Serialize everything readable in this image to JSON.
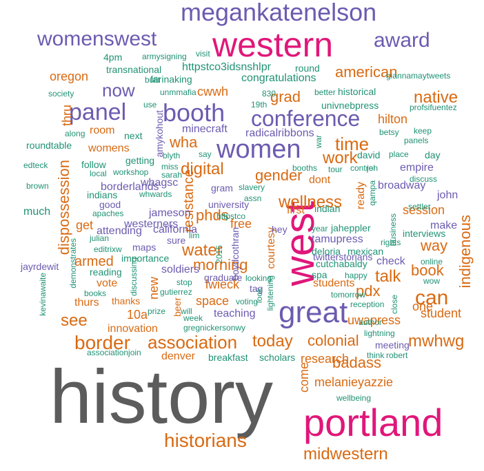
{
  "colors": {
    "gray": "#5c5c5c",
    "magenta": "#e0177a",
    "purple": "#6c5bb0",
    "orange": "#d96a12",
    "green": "#1f9274"
  },
  "words": [
    {
      "text": "history",
      "color": "gray"
    },
    {
      "text": "portland",
      "color": "magenta"
    },
    {
      "text": "western",
      "color": "magenta"
    },
    {
      "text": "west",
      "color": "magenta"
    },
    {
      "text": "great",
      "color": "purple"
    },
    {
      "text": "megankatenelson",
      "color": "purple"
    },
    {
      "text": "booth",
      "color": "purple"
    },
    {
      "text": "women",
      "color": "purple"
    },
    {
      "text": "panel",
      "color": "purple"
    },
    {
      "text": "conference",
      "color": "purple"
    },
    {
      "text": "womenswest",
      "color": "purple"
    },
    {
      "text": "award",
      "color": "purple"
    },
    {
      "text": "now",
      "color": "purple"
    },
    {
      "text": "historians",
      "color": "orange"
    },
    {
      "text": "midwestern",
      "color": "orange"
    },
    {
      "text": "border",
      "color": "orange"
    },
    {
      "text": "association",
      "color": "orange"
    },
    {
      "text": "today",
      "color": "orange"
    },
    {
      "text": "can",
      "color": "orange"
    },
    {
      "text": "see",
      "color": "orange"
    },
    {
      "text": "wellness",
      "color": "orange"
    },
    {
      "text": "talk",
      "color": "orange"
    },
    {
      "text": "water",
      "color": "orange"
    },
    {
      "text": "morning",
      "color": "orange"
    },
    {
      "text": "colonial",
      "color": "orange"
    },
    {
      "text": "mwhwg",
      "color": "orange"
    },
    {
      "text": "badass",
      "color": "orange"
    },
    {
      "text": "time",
      "color": "orange"
    },
    {
      "text": "work",
      "color": "orange"
    },
    {
      "text": "digital",
      "color": "orange"
    },
    {
      "text": "native",
      "color": "orange"
    },
    {
      "text": "american",
      "color": "orange"
    },
    {
      "text": "gender",
      "color": "orange"
    },
    {
      "text": "wha",
      "color": "orange"
    },
    {
      "text": "grad",
      "color": "orange"
    },
    {
      "text": "way",
      "color": "orange"
    },
    {
      "text": "book",
      "color": "orange"
    },
    {
      "text": "pdx",
      "color": "orange"
    },
    {
      "text": "indigenous",
      "color": "orange"
    },
    {
      "text": "research",
      "color": "orange"
    },
    {
      "text": "uwapress",
      "color": "orange"
    },
    {
      "text": "melanieyazzie",
      "color": "orange"
    },
    {
      "text": "denver",
      "color": "orange"
    },
    {
      "text": "innovation",
      "color": "orange"
    },
    {
      "text": "dispossession",
      "color": "orange"
    },
    {
      "text": "resistance",
      "color": "orange"
    },
    {
      "text": "lwieck",
      "color": "orange"
    },
    {
      "text": "armed",
      "color": "orange"
    },
    {
      "text": "come",
      "color": "orange"
    },
    {
      "text": "10a",
      "color": "orange"
    },
    {
      "text": "vote",
      "color": "orange"
    },
    {
      "text": "thurs",
      "color": "orange"
    },
    {
      "text": "thanks",
      "color": "orange"
    },
    {
      "text": "space",
      "color": "orange"
    },
    {
      "text": "free",
      "color": "orange"
    },
    {
      "text": "phds",
      "color": "orange"
    },
    {
      "text": "session",
      "color": "orange"
    },
    {
      "text": "dont",
      "color": "orange"
    },
    {
      "text": "first",
      "color": "orange"
    },
    {
      "text": "student",
      "color": "orange"
    },
    {
      "text": "students",
      "color": "orange"
    },
    {
      "text": "oregon",
      "color": "orange"
    },
    {
      "text": "cwwh",
      "color": "orange"
    },
    {
      "text": "room",
      "color": "orange"
    },
    {
      "text": "womens",
      "color": "orange"
    },
    {
      "text": "thru",
      "color": "orange"
    },
    {
      "text": "new",
      "color": "orange"
    },
    {
      "text": "beer",
      "color": "orange"
    },
    {
      "text": "one",
      "color": "orange"
    },
    {
      "text": "hilton",
      "color": "orange"
    },
    {
      "text": "get",
      "color": "orange"
    },
    {
      "text": "ready",
      "color": "orange"
    },
    {
      "text": "courtesy",
      "color": "orange"
    },
    {
      "text": "minecraft",
      "color": "purple"
    },
    {
      "text": "radicalribbons",
      "color": "purple"
    },
    {
      "text": "amykohout",
      "color": "purple"
    },
    {
      "text": "whagsc",
      "color": "purple"
    },
    {
      "text": "tamupress",
      "color": "purple"
    },
    {
      "text": "borderlands",
      "color": "purple"
    },
    {
      "text": "soldiers",
      "color": "purple"
    },
    {
      "text": "westerners",
      "color": "purple"
    },
    {
      "text": "jameson",
      "color": "purple"
    },
    {
      "text": "university",
      "color": "purple"
    },
    {
      "text": "gram",
      "color": "purple"
    },
    {
      "text": "jayrdewit",
      "color": "purple"
    },
    {
      "text": "maps",
      "color": "purple"
    },
    {
      "text": "sure",
      "color": "purple"
    },
    {
      "text": "check",
      "color": "purple"
    },
    {
      "text": "empire",
      "color": "purple"
    },
    {
      "text": "broadway",
      "color": "purple"
    },
    {
      "text": "john",
      "color": "purple"
    },
    {
      "text": "make",
      "color": "purple"
    },
    {
      "text": "hey",
      "color": "purple"
    },
    {
      "text": "good",
      "color": "purple"
    },
    {
      "text": "attending",
      "color": "purple"
    },
    {
      "text": "california",
      "color": "purple"
    },
    {
      "text": "teaching",
      "color": "purple"
    },
    {
      "text": "boydcothran",
      "color": "purple"
    },
    {
      "text": "tag",
      "color": "purple"
    },
    {
      "text": "graduate",
      "color": "purple"
    },
    {
      "text": "twitterstorians",
      "color": "purple"
    },
    {
      "text": "meeting",
      "color": "purple"
    },
    {
      "text": "congratulations",
      "color": "green"
    },
    {
      "text": "httpstco3idsnshlpr",
      "color": "green"
    },
    {
      "text": "transnational",
      "color": "green"
    },
    {
      "text": "farinaking",
      "color": "green"
    },
    {
      "text": "4pm",
      "color": "green"
    },
    {
      "text": "armysigning",
      "color": "green"
    },
    {
      "text": "visit",
      "color": "green"
    },
    {
      "text": "round",
      "color": "green"
    },
    {
      "text": "giannamaytweets",
      "color": "green"
    },
    {
      "text": "built",
      "color": "green"
    },
    {
      "text": "society",
      "color": "green"
    },
    {
      "text": "unmmafia",
      "color": "green"
    },
    {
      "text": "830",
      "color": "green"
    },
    {
      "text": "better",
      "color": "green"
    },
    {
      "text": "historical",
      "color": "green"
    },
    {
      "text": "19th",
      "color": "green"
    },
    {
      "text": "univnebpress",
      "color": "green"
    },
    {
      "text": "profsifuentez",
      "color": "green"
    },
    {
      "text": "use",
      "color": "green"
    },
    {
      "text": "next",
      "color": "green"
    },
    {
      "text": "along",
      "color": "green"
    },
    {
      "text": "betsy",
      "color": "green"
    },
    {
      "text": "keep",
      "color": "green"
    },
    {
      "text": "panels",
      "color": "green"
    },
    {
      "text": "roundtable",
      "color": "green"
    },
    {
      "text": "war",
      "color": "green"
    },
    {
      "text": "getting",
      "color": "green"
    },
    {
      "text": "blyth",
      "color": "green"
    },
    {
      "text": "say",
      "color": "green"
    },
    {
      "text": "david",
      "color": "green"
    },
    {
      "text": "place",
      "color": "green"
    },
    {
      "text": "day",
      "color": "green"
    },
    {
      "text": "edteck",
      "color": "green"
    },
    {
      "text": "follow",
      "color": "green"
    },
    {
      "text": "local",
      "color": "green"
    },
    {
      "text": "workshop",
      "color": "green"
    },
    {
      "text": "miss",
      "color": "green"
    },
    {
      "text": "sarah",
      "color": "green"
    },
    {
      "text": "booths",
      "color": "green"
    },
    {
      "text": "control",
      "color": "green"
    },
    {
      "text": "jen",
      "color": "green"
    },
    {
      "text": "tour",
      "color": "green"
    },
    {
      "text": "brown",
      "color": "green"
    },
    {
      "text": "indians",
      "color": "green"
    },
    {
      "text": "whwards",
      "color": "green"
    },
    {
      "text": "slavery",
      "color": "green"
    },
    {
      "text": "assn",
      "color": "green"
    },
    {
      "text": "qampa",
      "color": "green"
    },
    {
      "text": "indian",
      "color": "green"
    },
    {
      "text": "much",
      "color": "green"
    },
    {
      "text": "apaches",
      "color": "green"
    },
    {
      "text": "httpstco",
      "color": "green"
    },
    {
      "text": "year",
      "color": "green"
    },
    {
      "text": "jaheppler",
      "color": "green"
    },
    {
      "text": "business",
      "color": "green"
    },
    {
      "text": "interviews",
      "color": "green"
    },
    {
      "text": "julian",
      "color": "green"
    },
    {
      "text": "lim",
      "color": "green"
    },
    {
      "text": "editrixw",
      "color": "green"
    },
    {
      "text": "demonstrates",
      "color": "green"
    },
    {
      "text": "importance",
      "color": "green"
    },
    {
      "text": "2015",
      "color": "green"
    },
    {
      "text": "deloria",
      "color": "green"
    },
    {
      "text": "mexican",
      "color": "green"
    },
    {
      "text": "rights",
      "color": "green"
    },
    {
      "text": "cutchabaldy",
      "color": "green"
    },
    {
      "text": "online",
      "color": "green"
    },
    {
      "text": "reading",
      "color": "green"
    },
    {
      "text": "spa",
      "color": "green"
    },
    {
      "text": "happy",
      "color": "green"
    },
    {
      "text": "wow",
      "color": "green"
    },
    {
      "text": "stop",
      "color": "green"
    },
    {
      "text": "looking",
      "color": "green"
    },
    {
      "text": "tomorrow",
      "color": "green"
    },
    {
      "text": "books",
      "color": "green"
    },
    {
      "text": "gutierrez",
      "color": "green"
    },
    {
      "text": "discussing",
      "color": "green"
    },
    {
      "text": "kevinawaite",
      "color": "green"
    },
    {
      "text": "will",
      "color": "green"
    },
    {
      "text": "voting",
      "color": "green"
    },
    {
      "text": "lightening",
      "color": "green"
    },
    {
      "text": "reception",
      "color": "green"
    },
    {
      "text": "close",
      "color": "green"
    },
    {
      "text": "prize",
      "color": "green"
    },
    {
      "text": "week",
      "color": "green"
    },
    {
      "text": "look",
      "color": "green"
    },
    {
      "text": "author",
      "color": "green"
    },
    {
      "text": "lightning",
      "color": "green"
    },
    {
      "text": "gregnickersonwy",
      "color": "green"
    },
    {
      "text": "associationjoin",
      "color": "green"
    },
    {
      "text": "breakfast",
      "color": "green"
    },
    {
      "text": "scholars",
      "color": "green"
    },
    {
      "text": "think",
      "color": "green"
    },
    {
      "text": "robert",
      "color": "green"
    },
    {
      "text": "wellbeing",
      "color": "green"
    },
    {
      "text": "discuss",
      "color": "green"
    },
    {
      "text": "settler",
      "color": "green"
    }
  ]
}
